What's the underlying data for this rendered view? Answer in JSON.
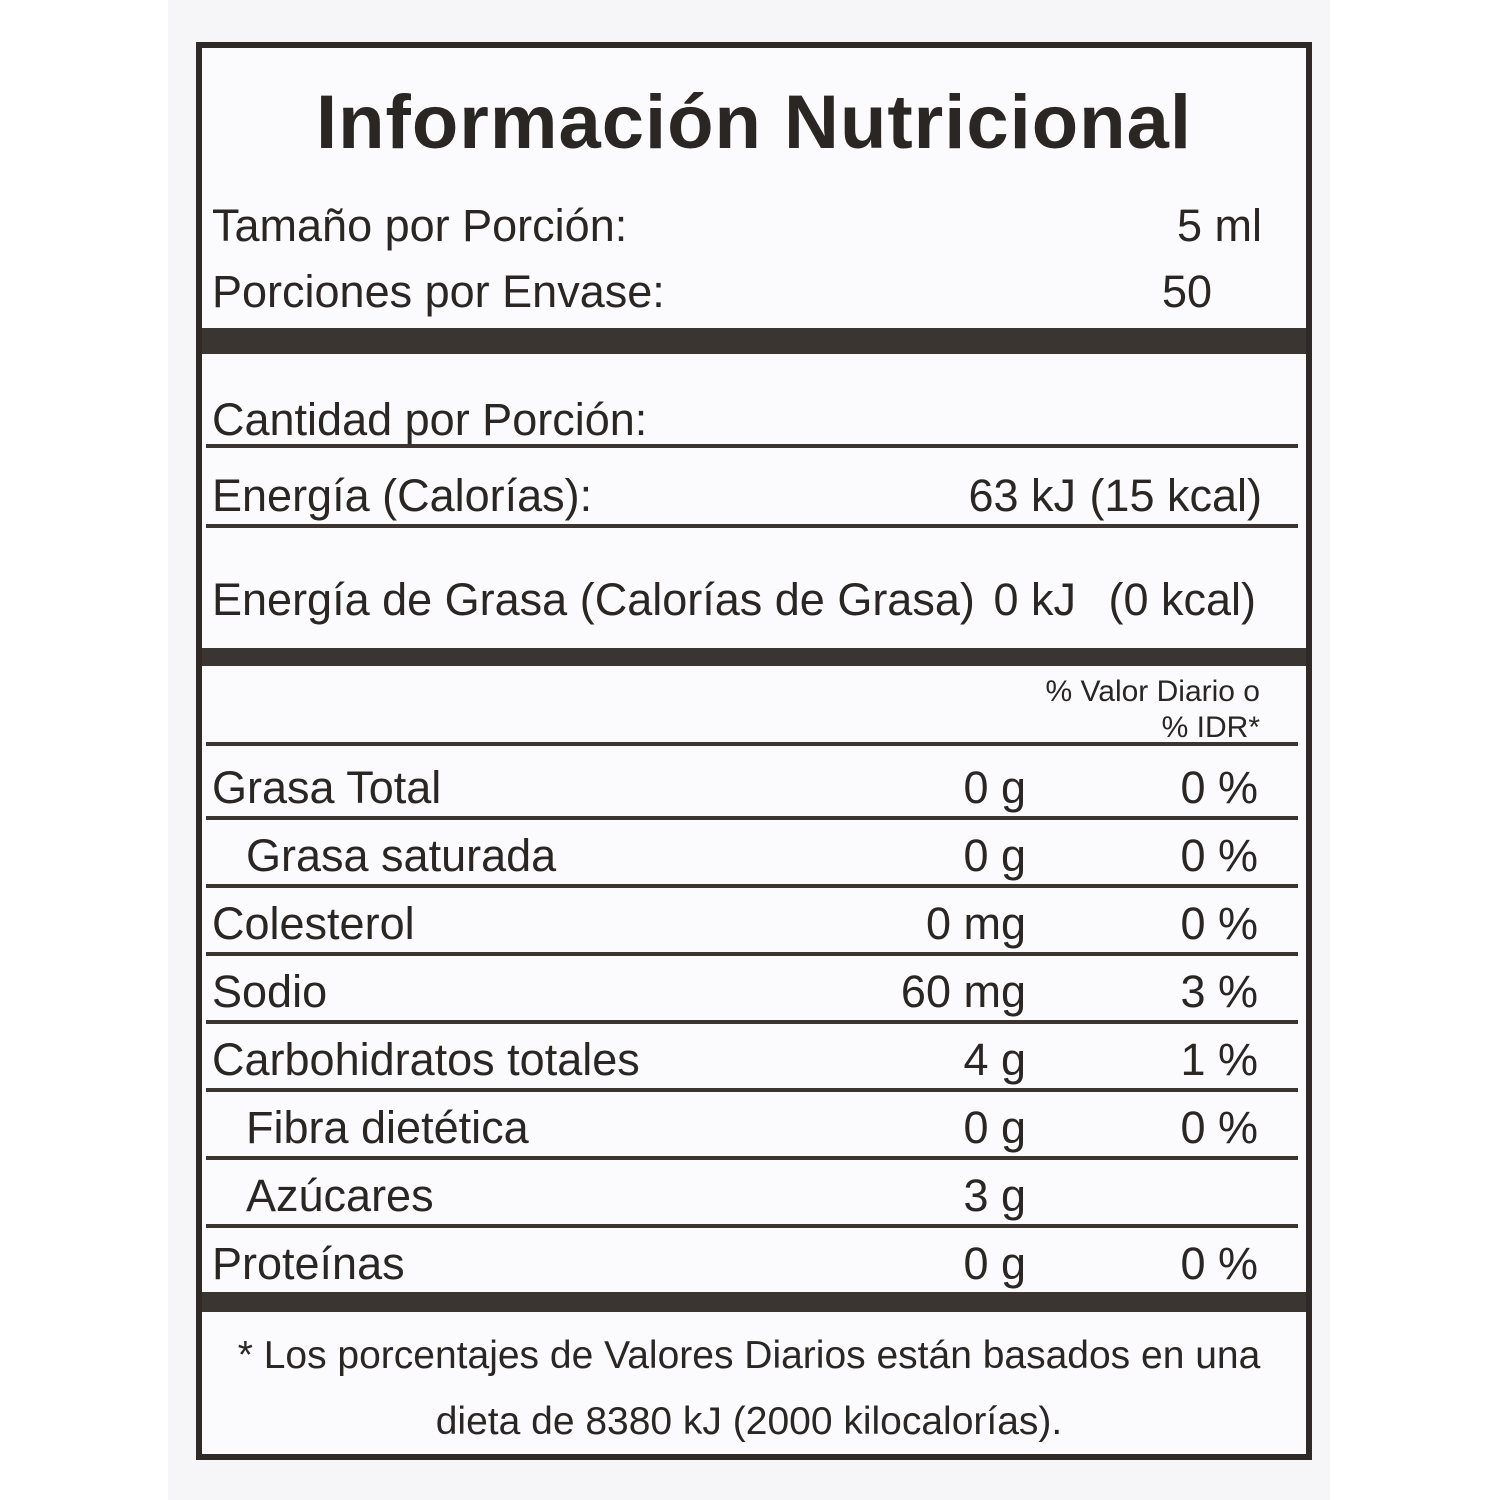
{
  "title": "Información Nutricional",
  "serving": {
    "size_label": "Tamaño por Porción:",
    "size_value": "5 ml",
    "per_container_label": "Porciones por Envase:",
    "per_container_value": "50"
  },
  "amount_header": "Cantidad por Porción:",
  "energy": {
    "label": "Energía (Calorías):",
    "kj": "63 kJ",
    "kcal": "(15 kcal)"
  },
  "fat_energy": {
    "label": "Energía de Grasa (Calorías de Grasa)",
    "kj": "0 kJ",
    "kcal": "(0 kcal)"
  },
  "dv_header_line1": "% Valor Diario o",
  "dv_header_line2": "% IDR*",
  "nutrients": [
    {
      "name": "Grasa Total",
      "amount": "0 g",
      "dv": "0 %"
    },
    {
      "name": "Grasa saturada",
      "amount": "0 g",
      "dv": "0 %"
    },
    {
      "name": "Colesterol",
      "amount": "0 mg",
      "dv": "0 %"
    },
    {
      "name": "Sodio",
      "amount": "60 mg",
      "dv": "3 %"
    },
    {
      "name": "Carbohidratos totales",
      "amount": "4 g",
      "dv": "1 %"
    },
    {
      "name": "Fibra dietética",
      "amount": "0 g",
      "dv": "0 %"
    },
    {
      "name": "Azúcares",
      "amount": "3 g",
      "dv": ""
    },
    {
      "name": "Proteínas",
      "amount": "0 g",
      "dv": "0 %"
    }
  ],
  "footnote_line1": "* Los porcentajes de Valores Diarios están basados en una",
  "footnote_line2": "dieta de 8380 kJ (2000 kilocalorías)."
}
